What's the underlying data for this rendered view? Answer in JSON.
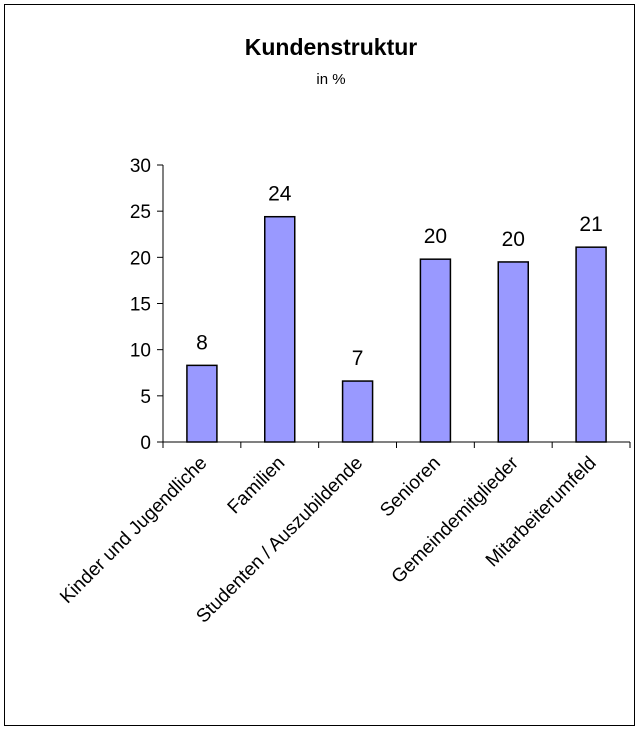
{
  "chart_data": {
    "type": "bar",
    "title": "Kundenstruktur",
    "subtitle": "in %",
    "categories": [
      "Kinder und Jugendliche",
      "Familien",
      "Studenten / Auszubildende",
      "Senioren",
      "Gemeindemitglieder",
      "Mitarbeiterumfeld"
    ],
    "values": [
      8.3,
      24.4,
      6.6,
      19.8,
      19.5,
      21.1
    ],
    "data_labels": [
      "8",
      "24",
      "7",
      "20",
      "20",
      "21"
    ],
    "ylim": [
      0,
      30
    ],
    "yticks": [
      "0",
      "5",
      "10",
      "15",
      "20",
      "25",
      "30"
    ],
    "xlabel": "",
    "ylabel": "",
    "grid": false,
    "bar_color": "#9999ff",
    "bar_border": "#000000"
  }
}
